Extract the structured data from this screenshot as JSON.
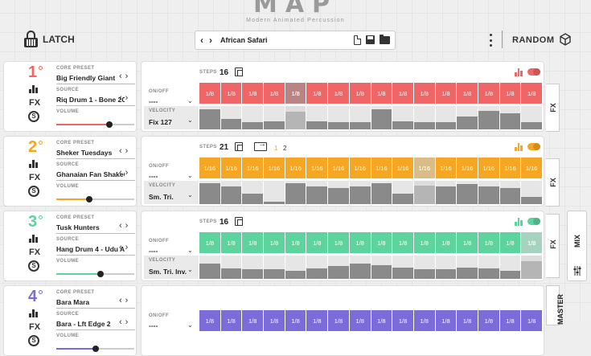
{
  "header": {
    "logo": "MAP",
    "subtitle": "Modern Animated Percussion",
    "latch_label": "LATCH",
    "preset_name": "African Safari",
    "random_label": "RANDOM"
  },
  "labels": {
    "core_preset": "CORE PRESET",
    "source": "SOURCE",
    "volume": "VOLUME",
    "on_off": "ON/OFF",
    "velocity": "VELOCITY",
    "steps": "STEPS",
    "fx": "FX",
    "mix": "MIX",
    "master": "MASTER",
    "solo": "S"
  },
  "tracks": [
    {
      "number": "1",
      "color": "#f06565",
      "core_preset": "Big Friendly Giant",
      "source": "Riq Drum 1 - Bone 2C",
      "volume": 0.68,
      "on_off": "----",
      "velocity": "Fix 127",
      "steps": "16",
      "step_labels": [
        "1/8",
        "1/8",
        "1/8",
        "1/8",
        "1/8",
        "1/8",
        "1/8",
        "1/8",
        "1/8",
        "1/8",
        "1/8",
        "1/8",
        "1/8",
        "1/8",
        "1/8",
        "1/8"
      ],
      "velocities": [
        0.85,
        0.45,
        0.3,
        0.35,
        0.75,
        0.35,
        0.3,
        0.3,
        0.85,
        0.35,
        0.3,
        0.3,
        0.55,
        0.8,
        0.7,
        0.3
      ],
      "highlight": 4
    },
    {
      "number": "2",
      "color": "#f5a623",
      "core_preset": "Sheker Tuesdays",
      "source": "Ghanaian Fan ShakeC",
      "volume": 0.42,
      "on_off": "----",
      "velocity": "Sm. Tri.",
      "steps": "21",
      "pages": [
        "1",
        "2"
      ],
      "step_labels": [
        "1/16",
        "1/16",
        "1/16",
        "1/16",
        "1/16",
        "1/16",
        "1/16",
        "1/16",
        "1/16",
        "1/16",
        "1/16",
        "1/16",
        "1/16",
        "1/16",
        "1/16",
        "1/16"
      ],
      "velocities": [
        0.9,
        0.75,
        0.45,
        0.1,
        0.9,
        0.75,
        0.7,
        0.75,
        0.9,
        0.45,
        0.8,
        0.75,
        0.85,
        0.75,
        0.7,
        0.3
      ],
      "highlight": 10
    },
    {
      "number": "3",
      "color": "#5dd39e",
      "core_preset": "Tusk Hunters",
      "source": "Hang Drum 4 - Udu A",
      "volume": 0.57,
      "on_off": "----",
      "velocity": "Sm. Tri. Inv.",
      "steps": "16",
      "step_labels": [
        "1/8",
        "1/8",
        "1/8",
        "1/8",
        "1/8",
        "1/8",
        "1/8",
        "1/8",
        "1/8",
        "1/8",
        "1/8",
        "1/8",
        "1/8",
        "1/8",
        "1/8",
        "1/8"
      ],
      "velocities": [
        0.65,
        0.45,
        0.4,
        0.4,
        0.35,
        0.45,
        0.55,
        0.65,
        0.6,
        0.5,
        0.4,
        0.4,
        0.5,
        0.45,
        0.35,
        0.75
      ],
      "highlight": 15
    },
    {
      "number": "4",
      "color": "#7b6cd9",
      "core_preset": "Bara Mara",
      "source": "Bara - Lft Edge 2",
      "volume": 0.5,
      "on_off": "----",
      "velocity": "",
      "steps": "",
      "step_labels": [
        "1/8",
        "1/8",
        "1/8",
        "1/8",
        "1/8",
        "1/8",
        "1/8",
        "1/8",
        "1/8",
        "1/8",
        "1/8",
        "1/8",
        "1/8",
        "1/8",
        "1/8",
        "1/8"
      ],
      "velocities": [],
      "highlight": -1
    }
  ]
}
